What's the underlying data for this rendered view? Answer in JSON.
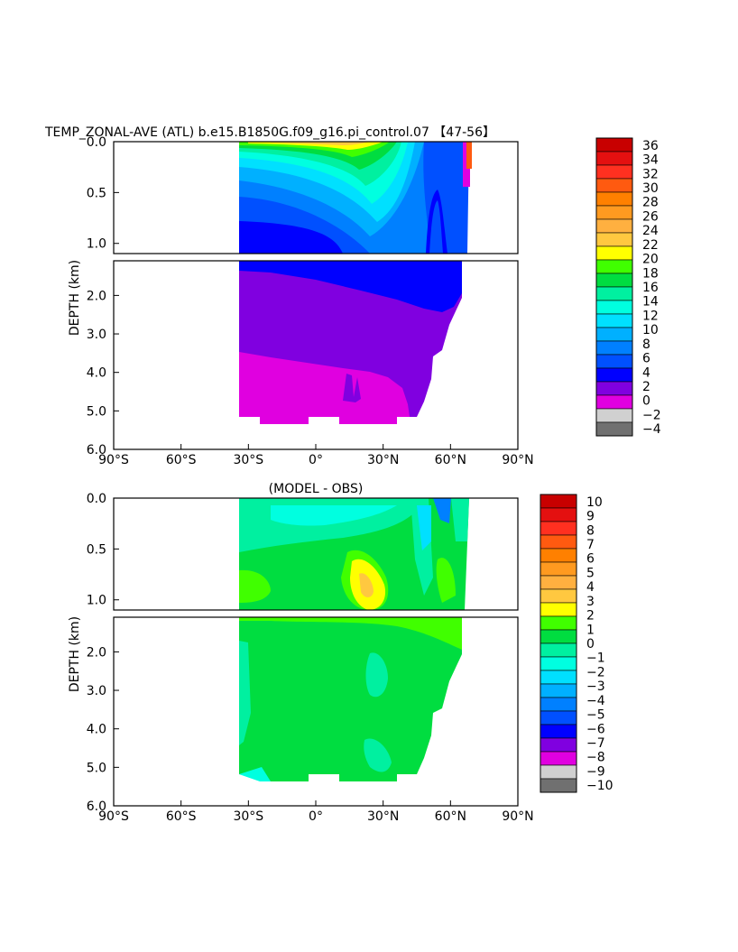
{
  "chart_data": [
    {
      "type": "heatmap",
      "title": "TEMP_ZONAL-AVE (ATL) b.e15.B1850G.f09_g16.pi_control.07 【47-56】",
      "ylabel": "DEPTH (km)",
      "xlabel": "",
      "x_ticks": [
        "90°S",
        "60°S",
        "30°S",
        "0°",
        "30°N",
        "60°N",
        "90°N"
      ],
      "xlim": [
        -90,
        90
      ],
      "y_ticks_upper": [
        "0.0",
        "0.5",
        "1.0"
      ],
      "y_ticks_lower": [
        "2.0",
        "3.0",
        "4.0",
        "5.0",
        "6.0"
      ],
      "ylim": [
        0,
        6
      ],
      "colorbar_labels": [
        "36",
        "34",
        "32",
        "30",
        "28",
        "26",
        "24",
        "22",
        "20",
        "18",
        "16",
        "14",
        "12",
        "10",
        "8",
        "6",
        "4",
        "2",
        "0",
        "−2",
        "−4"
      ],
      "colorbar_colors": [
        "#c80000",
        "#e41010",
        "#ff3020",
        "#ff5a10",
        "#ff8000",
        "#ff9a20",
        "#ffb040",
        "#ffc840",
        "#ffff00",
        "#40ff00",
        "#00dd40",
        "#00f0a0",
        "#00ffe0",
        "#00e0ff",
        "#00b0ff",
        "#0080ff",
        "#0050ff",
        "#0000ff",
        "#8000e0",
        "#e000e0",
        "#d0d0d0",
        "#707070"
      ]
    },
    {
      "type": "heatmap",
      "title": "(MODEL - OBS)",
      "ylabel": "DEPTH (km)",
      "xlabel": "",
      "x_ticks": [
        "90°S",
        "60°S",
        "30°S",
        "0°",
        "30°N",
        "60°N",
        "90°N"
      ],
      "xlim": [
        -90,
        90
      ],
      "y_ticks_upper": [
        "0.0",
        "0.5",
        "1.0"
      ],
      "y_ticks_lower": [
        "2.0",
        "3.0",
        "4.0",
        "5.0",
        "6.0"
      ],
      "ylim": [
        0,
        6
      ],
      "colorbar_labels": [
        "10",
        "9",
        "8",
        "7",
        "6",
        "5",
        "4",
        "3",
        "2",
        "1",
        "0",
        "−1",
        "−2",
        "−3",
        "−4",
        "−5",
        "−6",
        "−7",
        "−8",
        "−9",
        "−10"
      ],
      "colorbar_colors": [
        "#c80000",
        "#e41010",
        "#ff3020",
        "#ff5a10",
        "#ff8000",
        "#ff9a20",
        "#ffb040",
        "#ffc840",
        "#ffff00",
        "#40ff00",
        "#00dd40",
        "#00f0a0",
        "#00ffe0",
        "#00e0ff",
        "#00b0ff",
        "#0080ff",
        "#0050ff",
        "#0000ff",
        "#8000e0",
        "#e000e0",
        "#d0d0d0",
        "#707070"
      ]
    }
  ]
}
